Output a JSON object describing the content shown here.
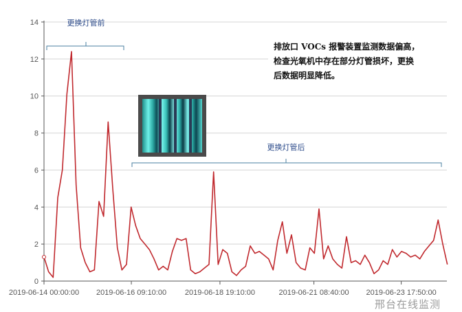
{
  "chart_data": {
    "type": "line",
    "title": "",
    "xlabel": "",
    "ylabel": "",
    "ylim": [
      0,
      14
    ],
    "yticks": [
      "0",
      "2",
      "4",
      "6",
      "8",
      "10",
      "12",
      "14"
    ],
    "xticks": [
      "2019-06-14 00:00:00",
      "2019-06-16 09:10:00",
      "2019-06-18 19:10:00",
      "2019-06-21 08:40:00",
      "2019-06-23 17:50:00"
    ],
    "grid": true,
    "line_color": "#c0282d",
    "series": [
      {
        "start": "2019-06-14 00:00:00",
        "interval_minutes": 180,
        "values": [
          1.3,
          0.5,
          0.2,
          4.5,
          6.0,
          10.1,
          12.4,
          5.2,
          1.8,
          1.0,
          0.5,
          0.6,
          4.3,
          3.5,
          8.6,
          5.0,
          1.8,
          0.6,
          0.9,
          4.0,
          3.0,
          2.3,
          2.0,
          1.7,
          1.2,
          0.6,
          0.8,
          0.6,
          1.6,
          2.3,
          2.2,
          2.3,
          0.6,
          0.4,
          0.5,
          0.7,
          0.9,
          5.9,
          0.9,
          1.7,
          1.5,
          0.5,
          0.3,
          0.6,
          0.8,
          1.9,
          1.5,
          1.6,
          1.4,
          1.2,
          0.6,
          2.2,
          3.2,
          1.5,
          2.5,
          1.0,
          0.7,
          0.6,
          1.8,
          1.5,
          3.9,
          1.2,
          1.9,
          1.2,
          0.9,
          0.7,
          2.4,
          1.0,
          1.1,
          0.9,
          1.4,
          1.0,
          0.4,
          0.6,
          1.1,
          0.9,
          1.7,
          1.3,
          1.6,
          1.5,
          1.3,
          1.4,
          1.2,
          1.6,
          1.9,
          2.2,
          3.3,
          2.0,
          0.9
        ]
      }
    ],
    "annotations": {
      "before_label": "更换灯管前",
      "after_label": "更换灯管后",
      "bracket_color": "#4a7fa0",
      "note_lines": [
        "排放口 VOCs 报警装置监测数据偏高，",
        "检查光氧机中存在部分灯管损坏，更换",
        "后数据明显降低。"
      ]
    }
  },
  "watermark": "邢台在线监测"
}
